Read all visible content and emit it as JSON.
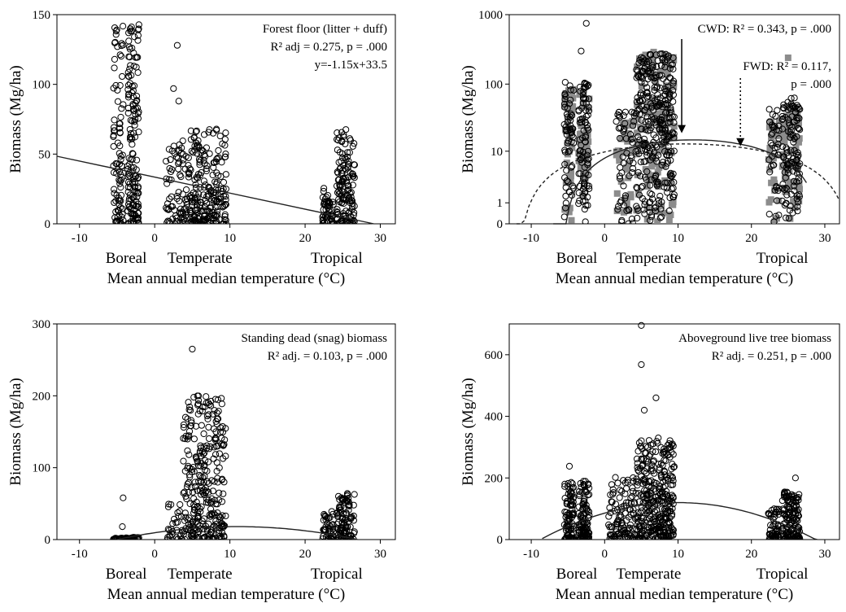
{
  "chart_data": [
    {
      "type": "scatter",
      "xlabel": "Mean annual median temperature (°C)",
      "ylabel": "Biomass (Mg/ha)",
      "xlim": [
        -13,
        32
      ],
      "ylim": [
        0,
        150
      ],
      "xticks": [
        "-10",
        "0",
        "10",
        "20",
        "30"
      ],
      "yticks": [
        "0",
        "50",
        "100",
        "150"
      ],
      "categories": [
        "Boreal",
        "Temperate",
        "Tropical"
      ],
      "annotation_lines": [
        "Forest floor (litter + duff)",
        "R² adj = 0.275, p = .000",
        "y=-1.15x+33.5"
      ],
      "clusters": [
        {
          "x_range": [
            -5.5,
            -4.2
          ],
          "y_max": 143,
          "density": 90
        },
        {
          "x_range": [
            -3.6,
            -2.1
          ],
          "y_max": 143,
          "density": 160
        },
        {
          "x_range": [
            1.5,
            4.5
          ],
          "y_max": 60,
          "density": 80
        },
        {
          "x_range": [
            4.5,
            9.5
          ],
          "y_max": 68,
          "density": 220
        },
        {
          "x_range": [
            22.3,
            23.8
          ],
          "y_max": 28,
          "density": 50
        },
        {
          "x_range": [
            24.2,
            26.6
          ],
          "y_max": 68,
          "density": 140
        }
      ],
      "outliers": [
        [
          3,
          128
        ],
        [
          2.5,
          97
        ],
        [
          3.2,
          88
        ]
      ],
      "fit": {
        "form": "linear",
        "slope": -1.15,
        "intercept": 33.5
      }
    },
    {
      "type": "scatter",
      "xlabel": "Mean annual median temperature (°C)",
      "ylabel": "Biomass (Mg/ha)",
      "xlim": [
        -13,
        32
      ],
      "ylim": [
        0,
        1000
      ],
      "yscale": "log1p",
      "xticks": [
        "-10",
        "0",
        "10",
        "20",
        "30"
      ],
      "yticks": [
        "0",
        "1",
        "10",
        "100",
        "1000"
      ],
      "categories": [
        "Boreal",
        "Temperate",
        "Tropical"
      ],
      "annotations": [
        {
          "text": "CWD: R² = 0.343, p = .000",
          "arrow": "solid",
          "x": 10.5,
          "y": 16
        },
        {
          "text": "FWD: R² = 0.117,",
          "text2": "p = .000",
          "arrow": "dotted",
          "x": 18.5,
          "y": 10
        }
      ],
      "series": [
        {
          "name": "CWD",
          "marker": "open-circle",
          "clusters": [
            {
              "x_range": [
                -5.5,
                -4.2
              ],
              "y_max": 110,
              "density": 60
            },
            {
              "x_range": [
                -3.6,
                -2.1
              ],
              "y_max": 110,
              "density": 90
            },
            {
              "x_range": [
                1.5,
                4.5
              ],
              "y_max": 40,
              "density": 60
            },
            {
              "x_range": [
                4.3,
                9.5
              ],
              "y_max": 280,
              "density": 320
            },
            {
              "x_range": [
                22.3,
                23.8
              ],
              "y_max": 45,
              "density": 40
            },
            {
              "x_range": [
                24.2,
                26.6
              ],
              "y_max": 65,
              "density": 120
            }
          ],
          "outliers": [
            [
              -2.5,
              750
            ],
            [
              -3.2,
              300
            ]
          ],
          "fit": {
            "form": "quadratic",
            "peak_x": 12,
            "peak_y": 15,
            "zero_x": [
              -7,
              27.5
            ]
          }
        },
        {
          "name": "FWD",
          "marker": "filled-square",
          "clusters": [
            {
              "x_range": [
                -5.5,
                -4.2
              ],
              "y_max": 90,
              "density": 40
            },
            {
              "x_range": [
                -3.6,
                -2.1
              ],
              "y_max": 90,
              "density": 40
            },
            {
              "x_range": [
                1.5,
                4.5
              ],
              "y_max": 30,
              "density": 40
            },
            {
              "x_range": [
                4.3,
                9.5
              ],
              "y_max": 300,
              "density": 120
            },
            {
              "x_range": [
                22.3,
                23.8
              ],
              "y_max": 30,
              "density": 30
            },
            {
              "x_range": [
                24.2,
                26.6
              ],
              "y_max": 50,
              "density": 60
            }
          ],
          "outliers": [
            [
              25,
              240
            ]
          ],
          "fit": {
            "form": "quadratic",
            "peak_x": 11,
            "peak_y": 13,
            "zero_x": [
              -12,
              32
            ]
          }
        }
      ]
    },
    {
      "type": "scatter",
      "xlabel": "Mean annual median temperature (°C)",
      "ylabel": "Biomass (Mg/ha)",
      "xlim": [
        -13,
        32
      ],
      "ylim": [
        0,
        300
      ],
      "xticks": [
        "-10",
        "0",
        "10",
        "20",
        "30"
      ],
      "yticks": [
        "0",
        "100",
        "200",
        "300"
      ],
      "categories": [
        "Boreal",
        "Temperate",
        "Tropical"
      ],
      "annotation_lines": [
        "Standing dead (snag) biomass",
        "R² adj. = 0.103, p = .000"
      ],
      "clusters": [
        {
          "x_range": [
            -5.5,
            -2.1
          ],
          "y_max": 3,
          "density": 60
        },
        {
          "x_range": [
            1.5,
            3.8
          ],
          "y_max": 50,
          "density": 30
        },
        {
          "x_range": [
            3.8,
            9.5
          ],
          "y_max": 200,
          "density": 300
        },
        {
          "x_range": [
            22.3,
            23.8
          ],
          "y_max": 40,
          "density": 40
        },
        {
          "x_range": [
            24.2,
            26.6
          ],
          "y_max": 65,
          "density": 100
        }
      ],
      "outliers": [
        [
          -4.2,
          58
        ],
        [
          -4.3,
          18
        ],
        [
          5,
          265
        ],
        [
          5.2,
          198
        ],
        [
          7.3,
          188
        ],
        [
          7.0,
          172
        ]
      ],
      "fit": {
        "form": "quadratic",
        "peak_x": 11,
        "peak_y": 18,
        "zero_x": [
          -5,
          27
        ]
      }
    },
    {
      "type": "scatter",
      "xlabel": "Mean annual median temperature (°C)",
      "ylabel": "Biomass (Mg/ha)",
      "xlim": [
        -13,
        32
      ],
      "ylim": [
        0,
        700
      ],
      "xticks": [
        "-10",
        "0",
        "10",
        "20",
        "30"
      ],
      "yticks": [
        "0",
        "200",
        "400",
        "600"
      ],
      "categories": [
        "Boreal",
        "Temperate",
        "Tropical"
      ],
      "annotation_lines": [
        "Aboveground live tree biomass",
        "R² adj. = 0.251, p = .000"
      ],
      "clusters": [
        {
          "x_range": [
            -5.5,
            -4.2
          ],
          "y_max": 190,
          "density": 90
        },
        {
          "x_range": [
            -3.6,
            -2.1
          ],
          "y_max": 190,
          "density": 110
        },
        {
          "x_range": [
            0.5,
            4.3
          ],
          "y_max": 210,
          "density": 110
        },
        {
          "x_range": [
            4.3,
            9.5
          ],
          "y_max": 330,
          "density": 340
        },
        {
          "x_range": [
            22.3,
            23.8
          ],
          "y_max": 100,
          "density": 60
        },
        {
          "x_range": [
            24.2,
            26.6
          ],
          "y_max": 160,
          "density": 150
        }
      ],
      "outliers": [
        [
          5,
          695
        ],
        [
          5,
          568
        ],
        [
          7,
          460
        ],
        [
          5.4,
          420
        ],
        [
          -4.8,
          238
        ],
        [
          26,
          200
        ]
      ],
      "fit": {
        "form": "quadratic",
        "peak_x": 10,
        "peak_y": 120,
        "zero_x": [
          -8.5,
          29
        ]
      }
    }
  ]
}
